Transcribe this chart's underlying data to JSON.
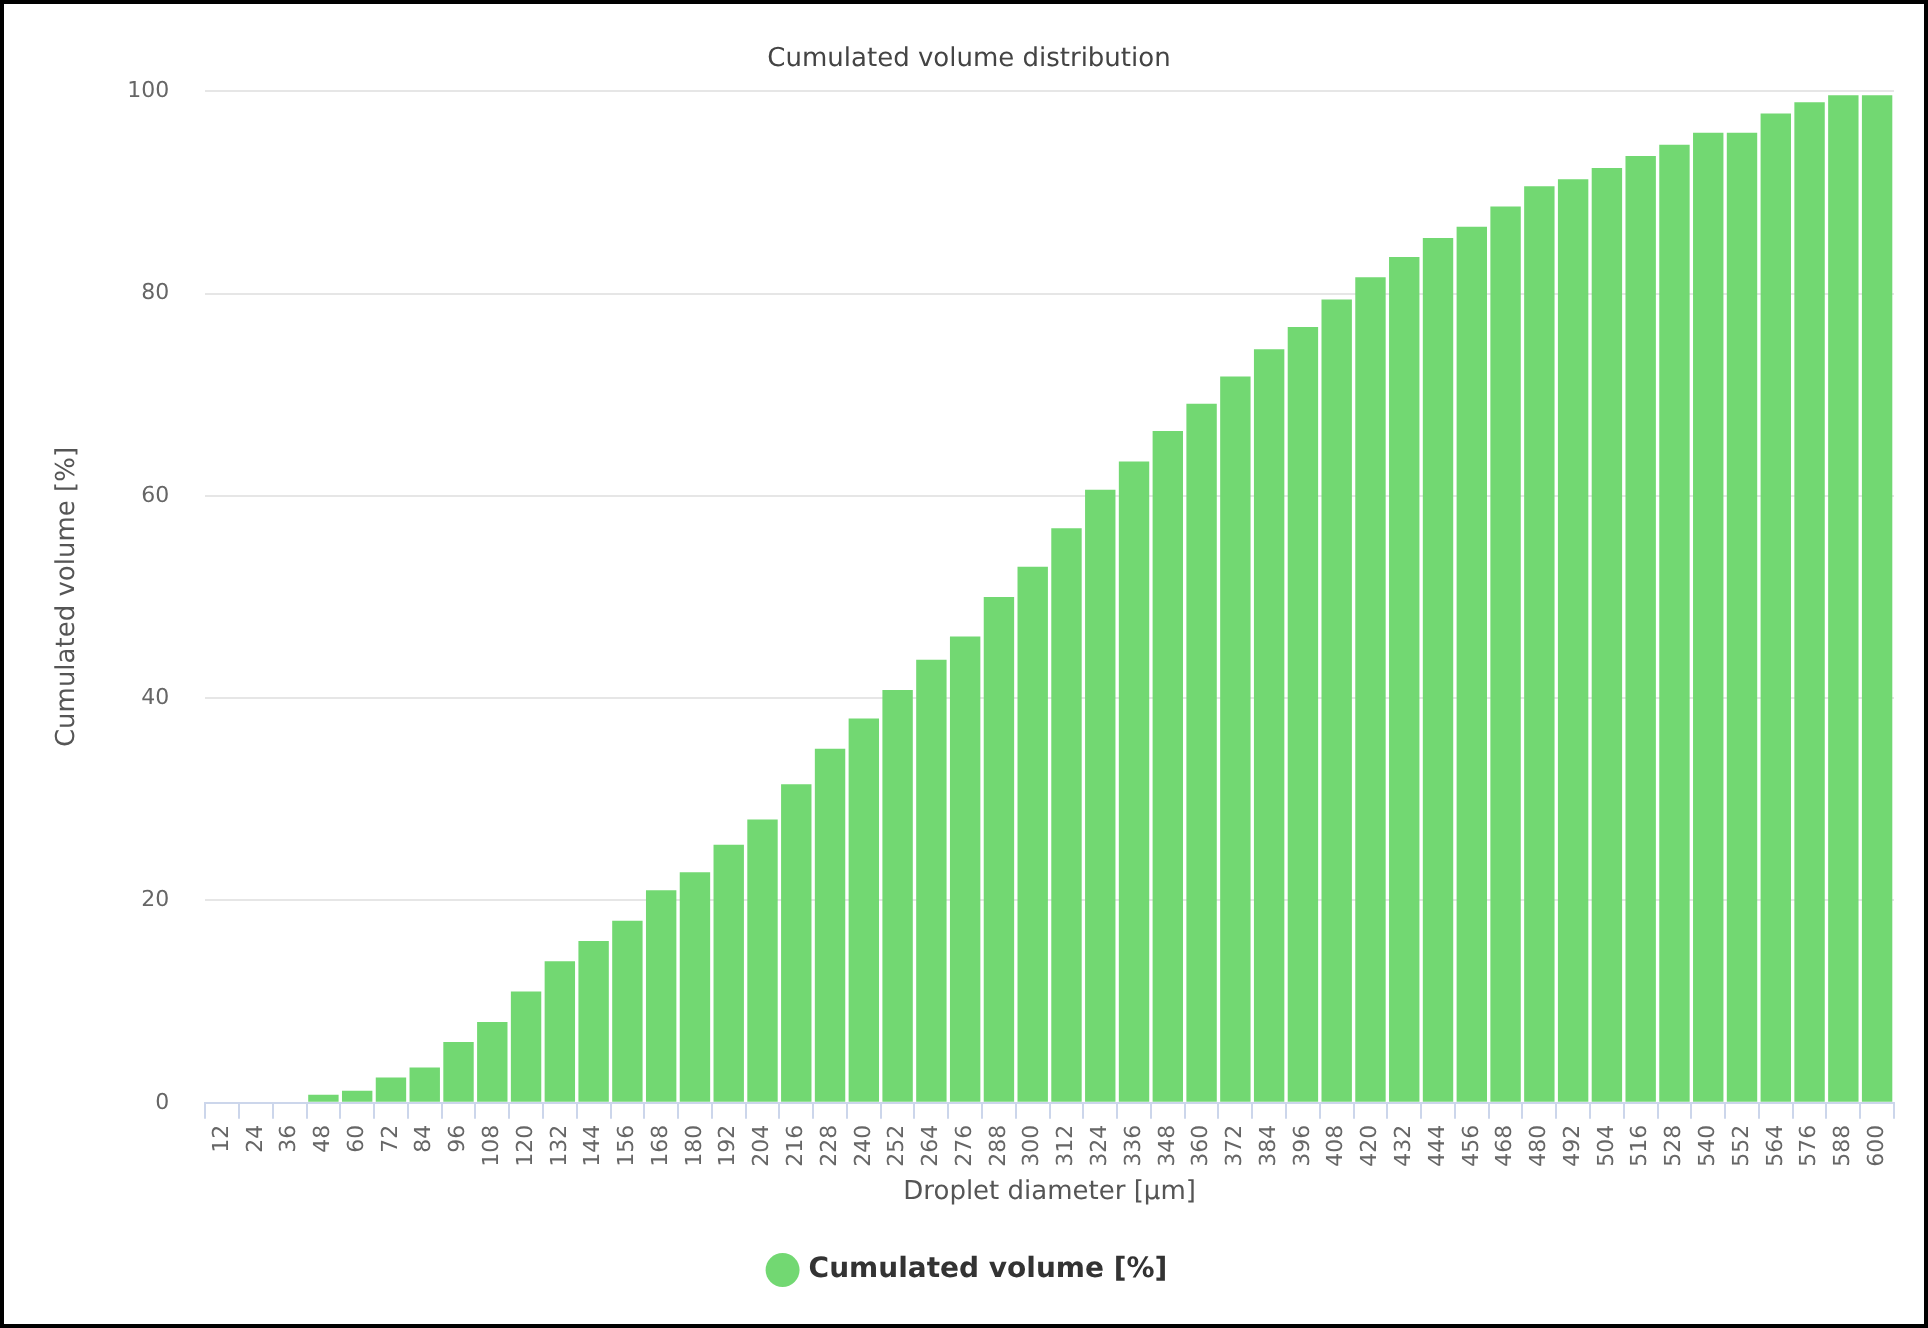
{
  "chart_data": {
    "type": "bar",
    "title": "Cumulated volume distribution",
    "xlabel": "Droplet diameter [µm]",
    "ylabel": "Cumulated volume [%]",
    "categories": [
      "12",
      "24",
      "36",
      "48",
      "60",
      "72",
      "84",
      "96",
      "108",
      "120",
      "132",
      "144",
      "156",
      "168",
      "180",
      "192",
      "204",
      "216",
      "228",
      "240",
      "252",
      "264",
      "276",
      "288",
      "300",
      "312",
      "324",
      "336",
      "348",
      "360",
      "372",
      "384",
      "396",
      "408",
      "420",
      "432",
      "444",
      "456",
      "468",
      "480",
      "492",
      "504",
      "516",
      "528",
      "540",
      "552",
      "564",
      "576",
      "588",
      "600"
    ],
    "series": [
      {
        "name": "Cumulated volume [%]",
        "color": "#72d872",
        "values": [
          0,
          0,
          0,
          0.8,
          1.2,
          2.5,
          3.5,
          6,
          8,
          11,
          14,
          16,
          18,
          21,
          22.8,
          25.5,
          28,
          31.5,
          35,
          38,
          40.8,
          43.8,
          46.1,
          50,
          53,
          56.8,
          60.6,
          63.4,
          66.4,
          69.1,
          71.8,
          74.5,
          76.7,
          79.4,
          81.6,
          83.6,
          85.5,
          86.6,
          88.6,
          90.6,
          91.3,
          92.4,
          93.6,
          94.7,
          95.9,
          95.9,
          97.8,
          98.9,
          99.6,
          99.6
        ]
      }
    ],
    "ylim": [
      0,
      100
    ],
    "yticks": [
      0,
      20,
      40,
      60,
      80,
      100
    ],
    "grid": "y",
    "legend": "bottom"
  }
}
